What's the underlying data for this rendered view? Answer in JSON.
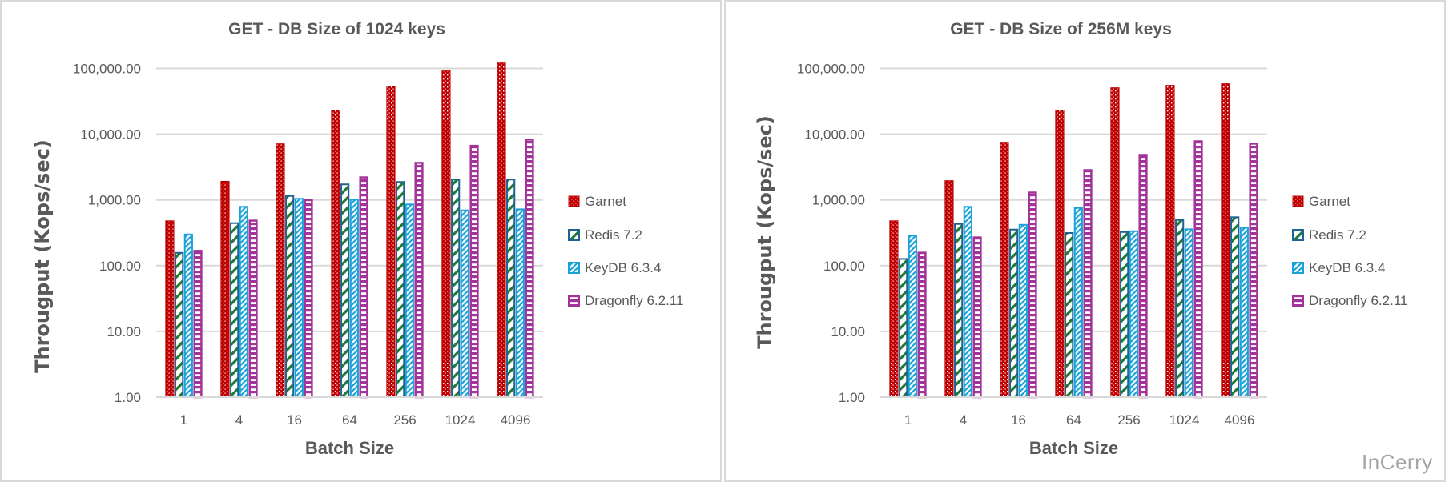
{
  "watermark": "InCerry",
  "colors": {
    "garnet": "#C00000",
    "redis_stroke": "#1F6391",
    "redis_stripe": "#1E7B34",
    "keydb": "#1AA3DB",
    "dragonfly": "#A23399",
    "grid": "#D9D9D9",
    "text": "#595959"
  },
  "chart_data": [
    {
      "type": "bar",
      "title": "GET - DB Size of 1024 keys",
      "xlabel": "Batch Size",
      "ylabel": "Througput (Kops/sec)",
      "yscale": "log",
      "ylim": [
        1,
        100000
      ],
      "yticks": [
        "1.00",
        "10.00",
        "100.00",
        "1,000.00",
        "10,000.00",
        "100,000.00"
      ],
      "grid": true,
      "legend_position": "right",
      "categories": [
        "1",
        "4",
        "16",
        "64",
        "256",
        "1024",
        "4096"
      ],
      "series": [
        {
          "name": "Garnet",
          "pattern": "dots",
          "values": [
            488,
            1945,
            7230,
            23500,
            54600,
            92900,
            122700
          ]
        },
        {
          "name": "Redis 7.2",
          "pattern": "diagonal-wide",
          "values": [
            161,
            456,
            1183,
            1775,
            1930,
            2100,
            2100
          ]
        },
        {
          "name": "KeyDB 6.3.4",
          "pattern": "diagonal-narrow",
          "values": [
            307,
            808,
            1070,
            1040,
            879,
            714,
            741
          ]
        },
        {
          "name": "Dragonfly 6.2.11",
          "pattern": "horizontal",
          "values": [
            174,
            501,
            1040,
            2280,
            3790,
            6890,
            8550
          ]
        }
      ]
    },
    {
      "type": "bar",
      "title": "GET - DB Size of 256M keys",
      "xlabel": "Batch Size",
      "ylabel": "Througput (Kops/sec)",
      "yscale": "log",
      "ylim": [
        1,
        100000
      ],
      "yticks": [
        "1.00",
        "10.00",
        "100.00",
        "1,000.00",
        "10,000.00",
        "100,000.00"
      ],
      "grid": true,
      "legend_position": "right",
      "categories": [
        "1",
        "4",
        "16",
        "64",
        "256",
        "1024",
        "4096"
      ],
      "series": [
        {
          "name": "Garnet",
          "pattern": "dots",
          "values": [
            488,
            1990,
            7640,
            23500,
            51500,
            56100,
            59300
          ]
        },
        {
          "name": "Redis 7.2",
          "pattern": "diagonal-wide",
          "values": [
            130,
            443,
            364,
            323,
            334,
            509,
            561
          ]
        },
        {
          "name": "KeyDB 6.3.4",
          "pattern": "diagonal-narrow",
          "values": [
            294,
            808,
            430,
            777,
            344,
            368,
            389
          ]
        },
        {
          "name": "Dragonfly 6.2.11",
          "pattern": "horizontal",
          "values": [
            163,
            278,
            1340,
            2940,
            5010,
            8070,
            7430
          ]
        }
      ]
    }
  ]
}
